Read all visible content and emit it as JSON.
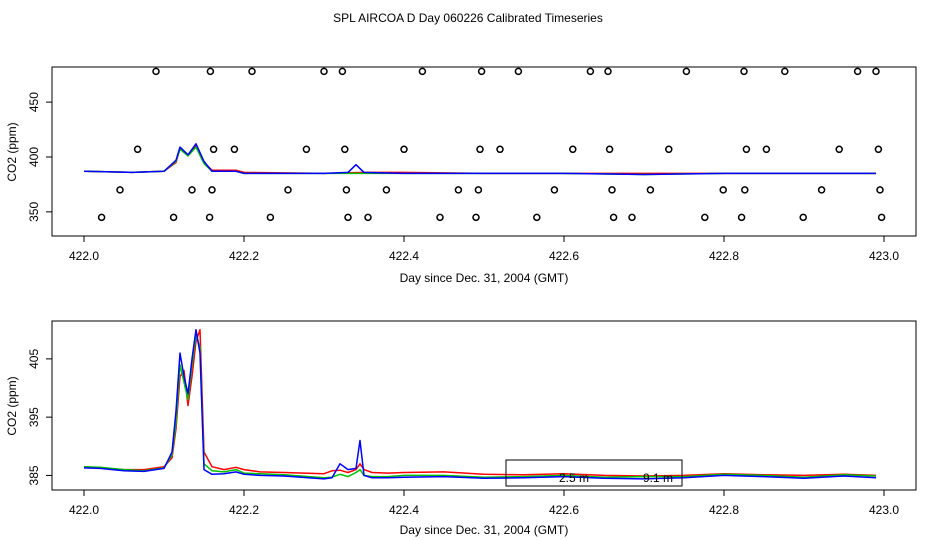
{
  "figure": {
    "title": "SPL AIRCOA D  Day 060226  Calibrated Timeseries"
  },
  "chart_data": [
    {
      "type": "line",
      "xlabel": "Day since Dec. 31, 2004 (GMT)",
      "ylabel": "CO2 (ppm)",
      "xlim": [
        422.0,
        423.0
      ],
      "ylim": [
        328,
        482
      ],
      "xticks": [
        "422.0",
        "422.2",
        "422.4",
        "422.6",
        "422.8",
        "423.0"
      ],
      "yticks": [
        "350",
        "400",
        "450"
      ],
      "colors": {
        "red": "#ff0000",
        "green": "#00c000",
        "blue": "#0000ff",
        "points": "#000000"
      },
      "series": [
        {
          "color": "red",
          "x": [
            422.0,
            422.06,
            422.1,
            422.115,
            422.12,
            422.13,
            422.14,
            422.15,
            422.16,
            422.19,
            422.2,
            422.3,
            422.35,
            422.4,
            422.5,
            422.6,
            422.7,
            422.8,
            422.9,
            422.99
          ],
          "y": [
            387,
            386,
            387,
            395,
            408,
            402,
            410,
            395,
            388,
            388,
            386,
            385,
            386,
            386,
            385,
            385,
            385,
            385,
            385,
            385
          ]
        },
        {
          "color": "green",
          "x": [
            422.0,
            422.06,
            422.1,
            422.115,
            422.12,
            422.13,
            422.14,
            422.15,
            422.16,
            422.19,
            422.2,
            422.3,
            422.35,
            422.4,
            422.5,
            422.6,
            422.7,
            422.8,
            422.9,
            422.99
          ],
          "y": [
            387,
            386,
            387,
            396,
            407,
            401,
            409,
            394,
            387,
            387,
            385,
            385,
            385,
            385,
            385,
            385,
            384,
            385,
            385,
            385
          ]
        },
        {
          "color": "blue",
          "x": [
            422.0,
            422.06,
            422.1,
            422.115,
            422.12,
            422.13,
            422.14,
            422.15,
            422.16,
            422.19,
            422.2,
            422.3,
            422.33,
            422.34,
            422.35,
            422.4,
            422.5,
            422.6,
            422.7,
            422.8,
            422.9,
            422.99
          ],
          "y": [
            387,
            386,
            387,
            397,
            409,
            402,
            412,
            396,
            387,
            387,
            385,
            385,
            386,
            393,
            386,
            385,
            385,
            385,
            384,
            385,
            385,
            385
          ]
        }
      ],
      "points": {
        "x": [
          422.022,
          422.045,
          422.067,
          422.09,
          422.112,
          422.135,
          422.157,
          422.16,
          422.162,
          422.158,
          422.188,
          422.21,
          422.233,
          422.255,
          422.278,
          422.3,
          422.323,
          422.326,
          422.33,
          422.328,
          422.355,
          422.378,
          422.4,
          422.423,
          422.445,
          422.468,
          422.49,
          422.493,
          422.495,
          422.497,
          422.52,
          422.543,
          422.566,
          422.588,
          422.611,
          422.633,
          422.655,
          422.657,
          422.66,
          422.662,
          422.685,
          422.708,
          422.731,
          422.753,
          422.776,
          422.799,
          422.822,
          422.826,
          422.828,
          422.825,
          422.853,
          422.876,
          422.899,
          422.922,
          422.944,
          422.967,
          422.99,
          422.993,
          422.995,
          422.997
        ],
        "y": [
          345,
          370,
          407,
          478,
          345,
          370,
          345,
          370,
          407,
          478,
          407,
          478,
          345,
          370,
          407,
          478,
          478,
          407,
          345,
          370,
          345,
          370,
          407,
          478,
          345,
          370,
          345,
          370,
          407,
          478,
          407,
          478,
          345,
          370,
          407,
          478,
          478,
          407,
          370,
          345,
          345,
          370,
          407,
          478,
          345,
          370,
          345,
          370,
          407,
          478,
          407,
          478,
          345,
          370,
          407,
          478,
          478,
          407,
          370,
          345
        ]
      }
    },
    {
      "type": "line",
      "xlabel": "Day since Dec. 31, 2004 (GMT)",
      "ylabel": "CO2 (ppm)",
      "xlim": [
        422.0,
        423.0
      ],
      "ylim": [
        382.5,
        411.5
      ],
      "xticks": [
        "422.0",
        "422.2",
        "422.4",
        "422.6",
        "422.8",
        "423.0"
      ],
      "yticks": [
        "385",
        "395",
        "405"
      ],
      "colors": {
        "red": "#ff0000",
        "green": "#00c000",
        "blue": "#0000ff"
      },
      "series": [
        {
          "color": "red",
          "x": [
            422.0,
            422.02,
            422.05,
            422.075,
            422.1,
            422.11,
            422.115,
            422.12,
            422.125,
            422.13,
            422.135,
            422.14,
            422.145,
            422.15,
            422.16,
            422.175,
            422.19,
            422.2,
            422.22,
            422.25,
            422.3,
            422.31,
            422.32,
            422.33,
            422.34,
            422.345,
            422.35,
            422.36,
            422.38,
            422.4,
            422.45,
            422.5,
            422.55,
            422.6,
            422.65,
            422.7,
            422.75,
            422.8,
            422.85,
            422.9,
            422.95,
            422.99
          ],
          "y": [
            386.5,
            386.3,
            386.0,
            386.0,
            386.5,
            388.0,
            393.0,
            402.0,
            403.0,
            397.0,
            402.0,
            408.0,
            410.0,
            389.0,
            386.5,
            386.0,
            386.4,
            386.0,
            385.6,
            385.5,
            385.3,
            385.8,
            385.9,
            385.5,
            386.0,
            387.0,
            386.0,
            385.5,
            385.4,
            385.5,
            385.6,
            385.2,
            385.1,
            385.3,
            385.0,
            384.9,
            385.0,
            385.3,
            385.1,
            385.0,
            385.2,
            385.0
          ]
        },
        {
          "color": "green",
          "x": [
            422.0,
            422.02,
            422.05,
            422.075,
            422.1,
            422.11,
            422.115,
            422.12,
            422.125,
            422.13,
            422.135,
            422.14,
            422.145,
            422.15,
            422.16,
            422.175,
            422.19,
            422.2,
            422.22,
            422.25,
            422.3,
            422.31,
            422.32,
            422.33,
            422.34,
            422.345,
            422.35,
            422.36,
            422.38,
            422.4,
            422.45,
            422.5,
            422.55,
            422.6,
            422.65,
            422.7,
            422.75,
            422.8,
            422.85,
            422.9,
            422.95,
            422.99
          ],
          "y": [
            386.5,
            386.4,
            386.0,
            385.8,
            386.3,
            388.5,
            394.0,
            404.0,
            401.0,
            398.0,
            404.0,
            409.0,
            407.0,
            387.0,
            385.8,
            385.6,
            386.0,
            385.4,
            385.3,
            385.1,
            384.6,
            384.7,
            385.2,
            384.8,
            385.5,
            386.0,
            385.0,
            384.8,
            384.8,
            385.0,
            385.0,
            384.7,
            384.8,
            385.0,
            384.7,
            384.8,
            384.8,
            385.2,
            385.0,
            384.7,
            385.1,
            384.9
          ]
        },
        {
          "color": "blue",
          "x": [
            422.0,
            422.02,
            422.05,
            422.075,
            422.1,
            422.11,
            422.115,
            422.12,
            422.125,
            422.13,
            422.135,
            422.14,
            422.145,
            422.15,
            422.16,
            422.175,
            422.19,
            422.2,
            422.22,
            422.25,
            422.3,
            422.31,
            422.32,
            422.33,
            422.34,
            422.345,
            422.35,
            422.36,
            422.38,
            422.4,
            422.45,
            422.5,
            422.55,
            422.6,
            422.65,
            422.7,
            422.75,
            422.8,
            422.85,
            422.9,
            422.95,
            422.99
          ],
          "y": [
            386.3,
            386.2,
            385.8,
            385.7,
            386.2,
            389.0,
            396.0,
            406.0,
            402.0,
            399.0,
            405.0,
            410.0,
            406.0,
            386.0,
            385.2,
            385.3,
            385.6,
            385.2,
            385.0,
            384.9,
            384.4,
            384.6,
            387.0,
            386.0,
            386.2,
            391.0,
            385.0,
            384.6,
            384.6,
            384.7,
            384.8,
            384.5,
            384.6,
            384.8,
            384.5,
            384.4,
            384.6,
            385.0,
            384.8,
            384.5,
            384.9,
            384.6
          ]
        }
      ],
      "legend": {
        "items": [
          "2.5 m",
          "9.1 m"
        ],
        "position": "bottom-center"
      }
    }
  ]
}
